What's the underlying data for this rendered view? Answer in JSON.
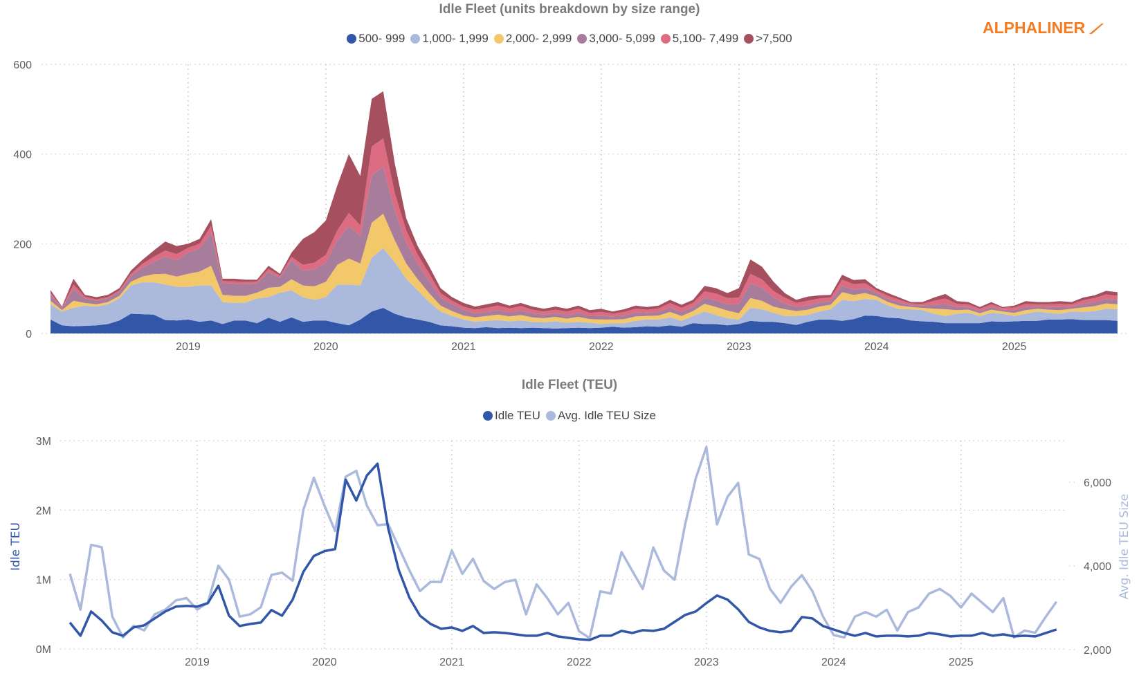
{
  "logo": {
    "text": "ALPHALINER",
    "color": "#f47b20"
  },
  "chart_data": [
    {
      "type": "area",
      "stacked": true,
      "title": "Idle Fleet (units breakdown by size range)",
      "legend_position": "top",
      "grid": "dotted",
      "xlabel": "",
      "ylabel": "",
      "ylim": [
        0,
        600
      ],
      "yticks": [
        "0",
        "200",
        "400",
        "600"
      ],
      "yticks_values": [
        0,
        200,
        400,
        600
      ],
      "xticks": [
        "2019",
        "2020",
        "2021",
        "2022",
        "2023",
        "2024",
        "2025"
      ],
      "x": [
        "2018-01",
        "2018-02",
        "2018-03",
        "2018-04",
        "2018-05",
        "2018-06",
        "2018-07",
        "2018-08",
        "2018-09",
        "2018-10",
        "2018-11",
        "2018-12",
        "2019-01",
        "2019-02",
        "2019-03",
        "2019-04",
        "2019-05",
        "2019-06",
        "2019-07",
        "2019-08",
        "2019-09",
        "2019-10",
        "2019-11",
        "2019-12",
        "2020-01",
        "2020-02",
        "2020-03",
        "2020-04",
        "2020-05",
        "2020-06",
        "2020-07",
        "2020-08",
        "2020-09",
        "2020-10",
        "2020-11",
        "2020-12",
        "2021-01",
        "2021-02",
        "2021-03",
        "2021-04",
        "2021-05",
        "2021-06",
        "2021-07",
        "2021-08",
        "2021-09",
        "2021-10",
        "2021-11",
        "2021-12",
        "2022-01",
        "2022-02",
        "2022-03",
        "2022-04",
        "2022-05",
        "2022-06",
        "2022-07",
        "2022-08",
        "2022-09",
        "2022-10",
        "2022-11",
        "2022-12",
        "2023-01",
        "2023-02",
        "2023-03",
        "2023-04",
        "2023-05",
        "2023-06",
        "2023-07",
        "2023-08",
        "2023-09",
        "2023-10",
        "2023-11",
        "2023-12",
        "2024-01",
        "2024-02",
        "2024-03",
        "2024-04",
        "2024-05",
        "2024-06",
        "2024-07",
        "2024-08",
        "2024-09",
        "2024-10",
        "2024-11",
        "2024-12",
        "2025-01",
        "2025-02",
        "2025-03",
        "2025-04",
        "2025-05",
        "2025-06",
        "2025-07",
        "2025-08",
        "2025-09",
        "2025-10"
      ],
      "series": [
        {
          "name": "500- 999",
          "color": "#3357a8",
          "values": [
            31,
            18,
            16,
            17,
            18,
            21,
            29,
            44,
            43,
            42,
            30,
            29,
            31,
            26,
            29,
            21,
            29,
            29,
            23,
            35,
            26,
            36,
            26,
            29,
            29,
            23,
            18,
            31,
            49,
            57,
            44,
            36,
            31,
            26,
            18,
            16,
            13,
            12,
            14,
            12,
            13,
            12,
            13,
            12,
            11,
            12,
            13,
            12,
            13,
            15,
            13,
            14,
            16,
            15,
            18,
            15,
            23,
            21,
            21,
            18,
            21,
            28,
            26,
            26,
            23,
            19,
            26,
            31,
            31,
            28,
            32,
            40,
            39,
            35,
            34,
            29,
            27,
            26,
            23,
            23,
            23,
            23,
            27,
            26,
            27,
            28,
            28,
            31,
            31,
            32,
            30,
            30,
            30,
            28
          ]
        },
        {
          "name": "1,000- 1,999",
          "color": "#aab9dc",
          "values": [
            34,
            31,
            41,
            45,
            42,
            44,
            49,
            63,
            71,
            72,
            79,
            75,
            73,
            81,
            78,
            49,
            39,
            40,
            55,
            46,
            65,
            60,
            55,
            46,
            52,
            86,
            91,
            76,
            120,
            133,
            115,
            86,
            65,
            44,
            31,
            23,
            18,
            14,
            14,
            18,
            14,
            17,
            13,
            13,
            16,
            12,
            13,
            12,
            8,
            8,
            10,
            14,
            15,
            16,
            18,
            13,
            16,
            28,
            20,
            16,
            10,
            29,
            28,
            20,
            16,
            20,
            15,
            18,
            23,
            47,
            40,
            37,
            36,
            27,
            20,
            25,
            25,
            18,
            16,
            21,
            23,
            16,
            19,
            18,
            12,
            16,
            21,
            15,
            13,
            17,
            18,
            20,
            25,
            26
          ]
        },
        {
          "name": "2,000- 2,999",
          "color": "#f2c86b",
          "values": [
            8,
            3,
            16,
            6,
            5,
            5,
            6,
            8,
            13,
            18,
            24,
            23,
            29,
            31,
            44,
            16,
            16,
            15,
            13,
            21,
            13,
            25,
            26,
            30,
            34,
            44,
            58,
            49,
            78,
            77,
            49,
            34,
            25,
            20,
            13,
            11,
            9,
            10,
            11,
            12,
            11,
            12,
            10,
            9,
            10,
            9,
            11,
            8,
            10,
            8,
            9,
            10,
            8,
            9,
            12,
            11,
            11,
            17,
            18,
            17,
            14,
            22,
            19,
            14,
            15,
            11,
            12,
            11,
            10,
            17,
            14,
            13,
            8,
            8,
            8,
            5,
            5,
            11,
            15,
            8,
            7,
            6,
            7,
            5,
            7,
            8,
            6,
            7,
            8,
            6,
            10,
            11,
            12,
            11
          ]
        },
        {
          "name": "3,000- 5,099",
          "color": "#a87d9c",
          "values": [
            13,
            4,
            26,
            10,
            8,
            8,
            9,
            13,
            20,
            28,
            38,
            36,
            48,
            52,
            74,
            26,
            27,
            26,
            21,
            35,
            21,
            42,
            33,
            38,
            43,
            55,
            73,
            61,
            106,
            105,
            66,
            47,
            35,
            28,
            18,
            15,
            13,
            9,
            9,
            10,
            9,
            10,
            9,
            8,
            8,
            8,
            9,
            7,
            9,
            7,
            8,
            9,
            7,
            8,
            10,
            9,
            9,
            14,
            15,
            14,
            21,
            32,
            29,
            21,
            13,
            9,
            10,
            9,
            8,
            14,
            12,
            11,
            7,
            7,
            7,
            4,
            5,
            9,
            12,
            7,
            6,
            5,
            6,
            4,
            6,
            7,
            5,
            6,
            7,
            5,
            8,
            9,
            10,
            10
          ]
        },
        {
          "name": "5,100- 7,499",
          "color": "#dd6b81",
          "values": [
            5,
            2,
            10,
            4,
            3,
            3,
            3,
            5,
            8,
            11,
            14,
            14,
            10,
            10,
            15,
            5,
            5,
            5,
            4,
            7,
            4,
            8,
            13,
            15,
            17,
            22,
            29,
            24,
            64,
            63,
            40,
            27,
            20,
            16,
            10,
            8,
            7,
            8,
            9,
            10,
            9,
            10,
            8,
            7,
            8,
            8,
            9,
            7,
            8,
            6,
            8,
            8,
            7,
            8,
            10,
            9,
            9,
            14,
            15,
            14,
            14,
            22,
            19,
            14,
            13,
            9,
            10,
            9,
            8,
            14,
            12,
            11,
            6,
            7,
            6,
            4,
            4,
            9,
            12,
            7,
            6,
            5,
            6,
            4,
            6,
            7,
            5,
            6,
            7,
            5,
            8,
            9,
            10,
            9
          ]
        },
        {
          "name": ">7,500",
          "color": "#a54f5f",
          "values": [
            6,
            2,
            13,
            4,
            5,
            5,
            5,
            7,
            9,
            14,
            20,
            18,
            9,
            11,
            15,
            5,
            6,
            5,
            4,
            7,
            4,
            9,
            58,
            68,
            77,
            100,
            131,
            110,
            106,
            105,
            66,
            27,
            19,
            16,
            11,
            8,
            8,
            7,
            8,
            8,
            6,
            7,
            7,
            6,
            7,
            6,
            7,
            6,
            7,
            5,
            6,
            7,
            6,
            6,
            7,
            7,
            7,
            12,
            12,
            11,
            21,
            32,
            28,
            21,
            10,
            7,
            9,
            7,
            6,
            11,
            9,
            9,
            5,
            6,
            5,
            3,
            4,
            7,
            10,
            6,
            5,
            4,
            5,
            2,
            4,
            6,
            5,
            5,
            6,
            5,
            6,
            6,
            8,
            8
          ]
        }
      ]
    },
    {
      "type": "line",
      "title": "Idle Fleet (TEU)",
      "legend_position": "top",
      "grid": "dotted",
      "xlabel": "",
      "ylabel": "Idle TEU",
      "y2label": "Avg. Idle TEU Size",
      "ylim": [
        0,
        3000000
      ],
      "y2lim": [
        2000,
        6900
      ],
      "yticks": [
        "0M",
        "1M",
        "2M",
        "3M"
      ],
      "yticks_values": [
        0,
        1000000,
        2000000,
        3000000
      ],
      "y2ticks": [
        "2,000",
        "4,000",
        "6,000"
      ],
      "y2ticks_values": [
        2000,
        4000,
        6000
      ],
      "xticks": [
        "2019",
        "2020",
        "2021",
        "2022",
        "2023",
        "2024",
        "2025"
      ],
      "x_same_as_first_chart": true,
      "series": [
        {
          "name": "Idle TEU",
          "axis": "left",
          "color": "#3357a8",
          "values": [
            380000,
            190000,
            540000,
            410000,
            240000,
            190000,
            310000,
            340000,
            440000,
            540000,
            610000,
            620000,
            610000,
            660000,
            910000,
            480000,
            330000,
            360000,
            380000,
            560000,
            480000,
            710000,
            1110000,
            1340000,
            1410000,
            1440000,
            2440000,
            2140000,
            2500000,
            2670000,
            1740000,
            1140000,
            740000,
            480000,
            360000,
            290000,
            310000,
            260000,
            330000,
            230000,
            240000,
            230000,
            210000,
            190000,
            190000,
            230000,
            180000,
            160000,
            140000,
            130000,
            190000,
            190000,
            260000,
            230000,
            270000,
            260000,
            290000,
            390000,
            490000,
            540000,
            660000,
            770000,
            710000,
            570000,
            390000,
            310000,
            260000,
            240000,
            260000,
            460000,
            440000,
            330000,
            280000,
            230000,
            190000,
            230000,
            180000,
            190000,
            190000,
            180000,
            190000,
            230000,
            210000,
            180000,
            190000,
            190000,
            230000,
            190000,
            210000,
            180000,
            190000,
            180000,
            230000,
            280000
          ]
        },
        {
          "name": "Avg. Idle TEU Size",
          "axis": "right",
          "color": "#aab9dc",
          "values": [
            3812,
            2956,
            4503,
            4448,
            2790,
            2293,
            2569,
            2459,
            2845,
            2956,
            3177,
            3232,
            2956,
            3122,
            4006,
            3674,
            2790,
            2845,
            3011,
            3785,
            3840,
            3646,
            5332,
            6105,
            5442,
            4834,
            6133,
            6271,
            5442,
            4972,
            5000,
            4448,
            3895,
            3398,
            3619,
            3619,
            4365,
            3812,
            4171,
            3642,
            3449,
            3615,
            3670,
            2843,
            3559,
            3229,
            2843,
            3119,
            2441,
            2276,
            3394,
            3339,
            4331,
            3890,
            3449,
            4441,
            3890,
            3670,
            4992,
            6094,
            6838,
            4992,
            5653,
            5984,
            4276,
            4165,
            3449,
            3119,
            3504,
            3780,
            3394,
            2788,
            2347,
            2292,
            2788,
            2898,
            2788,
            2953,
            2457,
            2898,
            3008,
            3339,
            3449,
            3284,
            3008,
            3339,
            3119,
            2898,
            3229,
            2292,
            2457,
            2402,
            2788,
            3146
          ]
        }
      ]
    }
  ]
}
